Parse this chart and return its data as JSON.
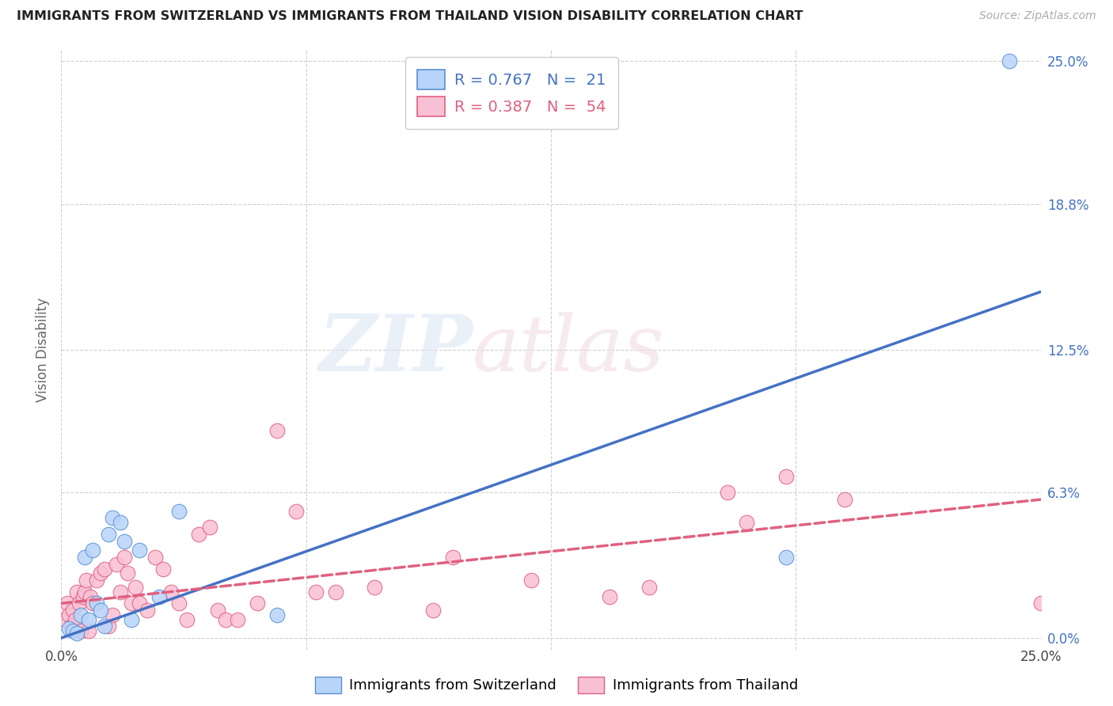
{
  "title": "IMMIGRANTS FROM SWITZERLAND VS IMMIGRANTS FROM THAILAND VISION DISABILITY CORRELATION CHART",
  "source": "Source: ZipAtlas.com",
  "ylabel": "Vision Disability",
  "ytick_values": [
    0.0,
    6.3,
    12.5,
    18.8,
    25.0
  ],
  "ytick_labels": [
    "0.0%",
    "6.3%",
    "12.5%",
    "18.8%",
    "25.0%"
  ],
  "xlim": [
    0.0,
    25.0
  ],
  "ylim": [
    0.0,
    25.0
  ],
  "legend_r1": "R = 0.767",
  "legend_n1": "N = 21",
  "legend_r2": "R = 0.387",
  "legend_n2": "N = 54",
  "color_swiss_fill": "#b8d4f8",
  "color_swiss_edge": "#5a8fd4",
  "color_thai_fill": "#f8c0d4",
  "color_thai_edge": "#e06080",
  "color_line_swiss": "#4472c4",
  "color_line_thailand": "#e06080",
  "swiss_x": [
    0.2,
    0.3,
    0.4,
    0.5,
    0.6,
    0.7,
    0.8,
    0.9,
    1.0,
    1.1,
    1.2,
    1.3,
    1.5,
    1.6,
    1.8,
    2.0,
    2.5,
    3.0,
    5.5,
    18.5,
    24.2
  ],
  "swiss_y": [
    0.4,
    0.3,
    0.2,
    1.0,
    3.5,
    0.8,
    3.8,
    1.5,
    1.2,
    0.5,
    4.5,
    5.2,
    5.0,
    4.2,
    0.8,
    3.8,
    1.8,
    5.5,
    1.0,
    3.5,
    25.0
  ],
  "thai_x": [
    0.1,
    0.15,
    0.2,
    0.25,
    0.3,
    0.35,
    0.4,
    0.45,
    0.5,
    0.55,
    0.6,
    0.65,
    0.7,
    0.75,
    0.8,
    0.9,
    1.0,
    1.1,
    1.2,
    1.3,
    1.4,
    1.5,
    1.6,
    1.7,
    1.8,
    1.9,
    2.0,
    2.2,
    2.4,
    2.6,
    2.8,
    3.0,
    3.2,
    3.5,
    3.8,
    4.0,
    4.2,
    4.5,
    5.0,
    5.5,
    6.0,
    6.5,
    7.0,
    8.0,
    9.5,
    10.0,
    12.0,
    14.0,
    15.0,
    17.0,
    17.5,
    18.5,
    20.0,
    25.0
  ],
  "thai_y": [
    0.8,
    1.5,
    1.0,
    0.5,
    1.2,
    0.8,
    2.0,
    1.5,
    0.3,
    1.8,
    2.0,
    2.5,
    0.3,
    1.8,
    1.5,
    2.5,
    2.8,
    3.0,
    0.5,
    1.0,
    3.2,
    2.0,
    3.5,
    2.8,
    1.5,
    2.2,
    1.5,
    1.2,
    3.5,
    3.0,
    2.0,
    1.5,
    0.8,
    4.5,
    4.8,
    1.2,
    0.8,
    0.8,
    1.5,
    9.0,
    5.5,
    2.0,
    2.0,
    2.2,
    1.2,
    3.5,
    2.5,
    1.8,
    2.2,
    6.3,
    5.0,
    7.0,
    6.0,
    1.5
  ]
}
